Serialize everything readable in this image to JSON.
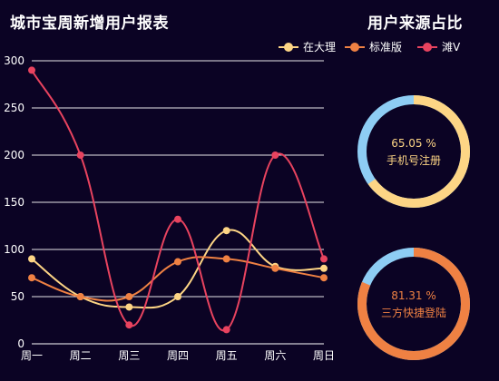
{
  "titles": {
    "main": "城市宝周新增用户报表",
    "side": "用户来源占比"
  },
  "colors": {
    "background": "#0b0324",
    "series": [
      "#fdd585",
      "#ef8143",
      "#e8435f"
    ],
    "donut_track": [
      "#8ecdf4",
      "#8ecdf4"
    ]
  },
  "chart_data": [
    {
      "type": "line",
      "smooth": true,
      "title": "城市宝周新增用户报表",
      "categories": [
        "周一",
        "周二",
        "周三",
        "周四",
        "周五",
        "周六",
        "周日"
      ],
      "ylim": [
        0,
        300
      ],
      "yticks": [
        0,
        50,
        100,
        150,
        200,
        250,
        300
      ],
      "grid": true,
      "legend_position": "top-right",
      "series": [
        {
          "name": "在大理",
          "values": [
            90,
            50,
            39,
            50,
            120,
            82,
            80
          ]
        },
        {
          "name": "标准版",
          "values": [
            70,
            50,
            50,
            87,
            90,
            80,
            70
          ]
        },
        {
          "name": "滩V",
          "values": [
            290,
            200,
            20,
            132,
            15,
            200,
            90
          ]
        }
      ]
    },
    {
      "type": "pie",
      "title": "用户来源占比",
      "slices": [
        {
          "label": "手机号注册",
          "percent_text": "65.05 %",
          "value": 65.05,
          "color": "#fdd585"
        },
        {
          "label": "三方快捷登陆",
          "percent_text": "81.31 %",
          "value": 81.31,
          "color": "#ef8143"
        }
      ]
    }
  ]
}
